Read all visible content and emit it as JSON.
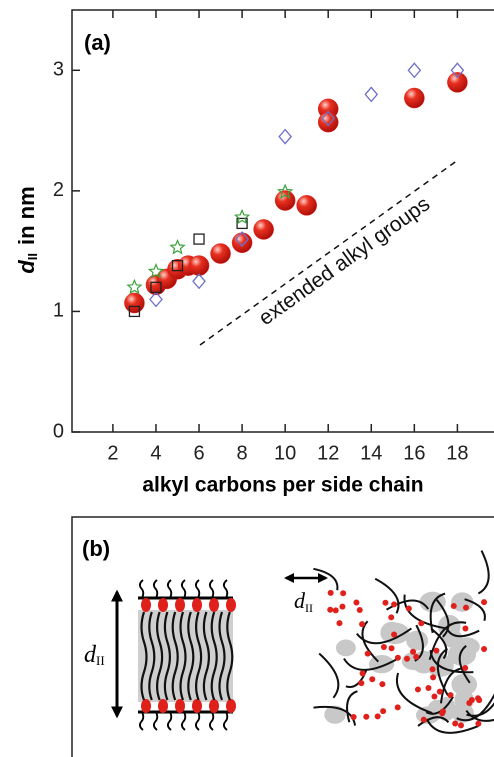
{
  "chart_data": {
    "type": "scatter",
    "panel_label": "(a)",
    "ylabel": {
      "symbol": "d",
      "subscript": "II",
      "unit": "in nm"
    },
    "xlabel": "alkyl carbons per side chain",
    "annotation": "extended alkyl groups",
    "xlim": [
      0.1,
      19.7
    ],
    "ylim": [
      0,
      3.5
    ],
    "xticks": [
      2,
      4,
      6,
      8,
      10,
      12,
      14,
      16,
      18
    ],
    "yticks": [
      0,
      1,
      2,
      3
    ],
    "series": [
      {
        "marker": "sphere",
        "color": "#e0201b",
        "x": [
          3,
          4,
          4.5,
          5,
          5.5,
          6,
          7,
          8,
          9,
          10,
          11,
          12,
          12,
          16,
          18
        ],
        "values": [
          1.07,
          1.22,
          1.27,
          1.35,
          1.38,
          1.38,
          1.48,
          1.57,
          1.68,
          1.92,
          1.88,
          2.68,
          2.57,
          2.77,
          2.9
        ]
      },
      {
        "marker": "diamond",
        "color": "#6f6fc8",
        "x": [
          4,
          6,
          8,
          10,
          12,
          14,
          16,
          18
        ],
        "values": [
          1.1,
          1.25,
          1.6,
          2.45,
          2.6,
          2.8,
          3.0,
          3.0
        ]
      },
      {
        "marker": "square",
        "color": "#222222",
        "x": [
          3,
          4,
          5,
          6,
          8
        ],
        "values": [
          1.0,
          1.2,
          1.38,
          1.6,
          1.73
        ]
      },
      {
        "marker": "star",
        "color": "#3aa23a",
        "x": [
          3,
          4,
          5,
          8,
          10
        ],
        "values": [
          1.2,
          1.33,
          1.53,
          1.78,
          1.99
        ]
      }
    ]
  },
  "panel_b": {
    "label": "(b)",
    "symbol": "d",
    "subscript": "II"
  }
}
